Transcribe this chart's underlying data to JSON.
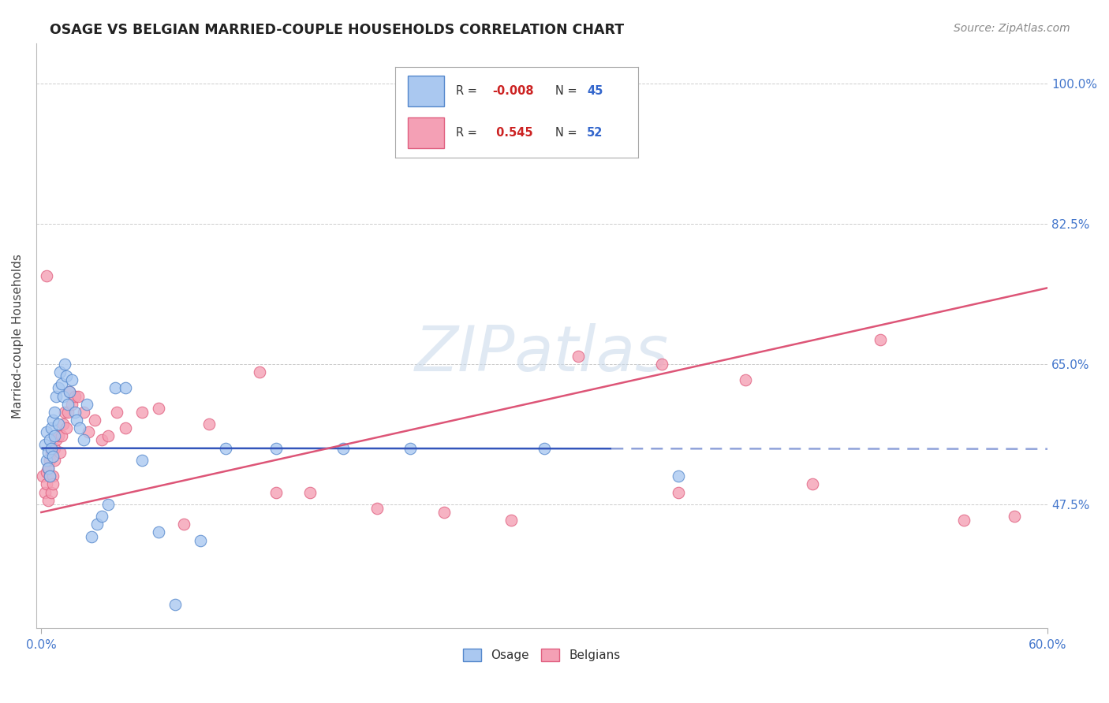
{
  "title": "OSAGE VS BELGIAN MARRIED-COUPLE HOUSEHOLDS CORRELATION CHART",
  "source": "Source: ZipAtlas.com",
  "ylabel": "Married-couple Households",
  "osage_color": "#aac8f0",
  "belgian_color": "#f4a0b5",
  "osage_edge_color": "#5588cc",
  "belgian_edge_color": "#e06080",
  "osage_line_color": "#3355bb",
  "belgian_line_color": "#dd5577",
  "osage_R": -0.008,
  "osage_N": 45,
  "belgian_R": 0.545,
  "belgian_N": 52,
  "watermark": "ZIPatlas",
  "xmin": 0.0,
  "xmax": 0.6,
  "ymin": 0.32,
  "ymax": 1.05,
  "ytick_vals": [
    0.475,
    0.65,
    0.825,
    1.0
  ],
  "ytick_labels": [
    "47.5%",
    "65.0%",
    "82.5%",
    "100.0%"
  ],
  "osage_line_y0": 0.545,
  "osage_line_y1": 0.544,
  "belgian_line_y0": 0.465,
  "belgian_line_y1": 0.745,
  "osage_solid_xend": 0.34,
  "osage_x": [
    0.002,
    0.003,
    0.003,
    0.004,
    0.004,
    0.005,
    0.005,
    0.006,
    0.006,
    0.007,
    0.007,
    0.008,
    0.008,
    0.009,
    0.01,
    0.01,
    0.011,
    0.012,
    0.013,
    0.014,
    0.015,
    0.016,
    0.017,
    0.018,
    0.02,
    0.021,
    0.023,
    0.025,
    0.027,
    0.03,
    0.033,
    0.036,
    0.04,
    0.044,
    0.05,
    0.06,
    0.07,
    0.08,
    0.095,
    0.11,
    0.14,
    0.18,
    0.22,
    0.3,
    0.38
  ],
  "osage_y": [
    0.55,
    0.53,
    0.565,
    0.54,
    0.52,
    0.555,
    0.51,
    0.545,
    0.57,
    0.535,
    0.58,
    0.56,
    0.59,
    0.61,
    0.575,
    0.62,
    0.64,
    0.625,
    0.61,
    0.65,
    0.635,
    0.6,
    0.615,
    0.63,
    0.59,
    0.58,
    0.57,
    0.555,
    0.6,
    0.435,
    0.45,
    0.46,
    0.475,
    0.62,
    0.62,
    0.53,
    0.44,
    0.35,
    0.43,
    0.545,
    0.545,
    0.545,
    0.545,
    0.545,
    0.51
  ],
  "belgian_x": [
    0.001,
    0.002,
    0.003,
    0.003,
    0.004,
    0.004,
    0.005,
    0.005,
    0.006,
    0.006,
    0.007,
    0.007,
    0.008,
    0.008,
    0.009,
    0.01,
    0.011,
    0.012,
    0.013,
    0.014,
    0.015,
    0.016,
    0.017,
    0.018,
    0.02,
    0.022,
    0.025,
    0.028,
    0.032,
    0.036,
    0.04,
    0.045,
    0.05,
    0.06,
    0.07,
    0.085,
    0.1,
    0.13,
    0.16,
    0.2,
    0.24,
    0.28,
    0.32,
    0.37,
    0.42,
    0.46,
    0.003,
    0.14,
    0.38,
    0.58,
    0.5,
    0.55
  ],
  "belgian_y": [
    0.51,
    0.49,
    0.5,
    0.515,
    0.48,
    0.52,
    0.51,
    0.53,
    0.54,
    0.49,
    0.51,
    0.5,
    0.53,
    0.545,
    0.555,
    0.56,
    0.54,
    0.56,
    0.575,
    0.59,
    0.57,
    0.59,
    0.615,
    0.6,
    0.61,
    0.61,
    0.59,
    0.565,
    0.58,
    0.555,
    0.56,
    0.59,
    0.57,
    0.59,
    0.595,
    0.45,
    0.575,
    0.64,
    0.49,
    0.47,
    0.465,
    0.455,
    0.66,
    0.65,
    0.63,
    0.5,
    0.76,
    0.49,
    0.49,
    0.46,
    0.68,
    0.455
  ]
}
